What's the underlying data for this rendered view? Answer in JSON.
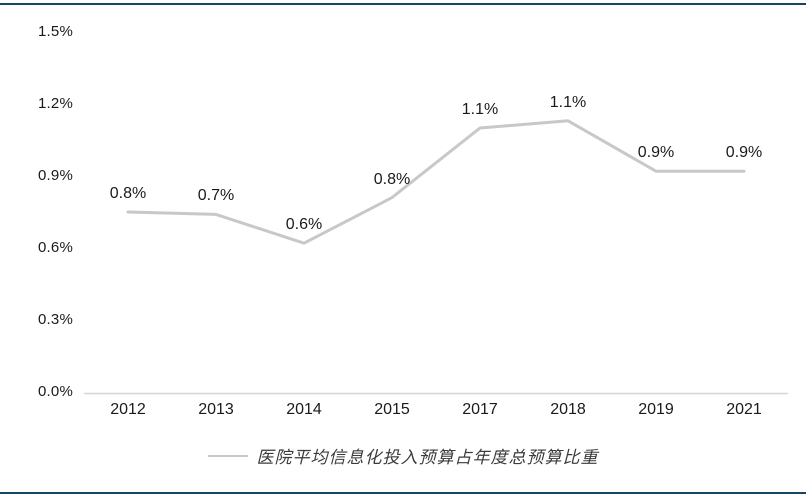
{
  "page": {
    "background_color": "#ffffff",
    "frame_line_color": "#14495f"
  },
  "chart_data": {
    "type": "line",
    "title": "",
    "categories": [
      "2012",
      "2013",
      "2014",
      "2015",
      "2017",
      "2018",
      "2019",
      "2021"
    ],
    "series": [
      {
        "name": "医院平均信息化投入预算占年度总预算比重",
        "values": [
          0.75,
          0.74,
          0.62,
          0.81,
          1.1,
          1.13,
          0.92,
          0.92
        ],
        "point_labels": [
          "0.8%",
          "0.7%",
          "0.6%",
          "0.8%",
          "1.1%",
          "1.1%",
          "0.9%",
          "0.9%"
        ],
        "color": "#c8c8c8"
      }
    ],
    "xlabel": "",
    "ylabel": "",
    "ylim": [
      0,
      1.5
    ],
    "y_tick_step": 0.3,
    "y_tick_labels": [
      "0.0%",
      "0.3%",
      "0.6%",
      "0.9%",
      "1.2%",
      "1.5%"
    ],
    "grid": "off",
    "axis_line_color": "#d6d6d6",
    "legend_position": "bottom"
  }
}
